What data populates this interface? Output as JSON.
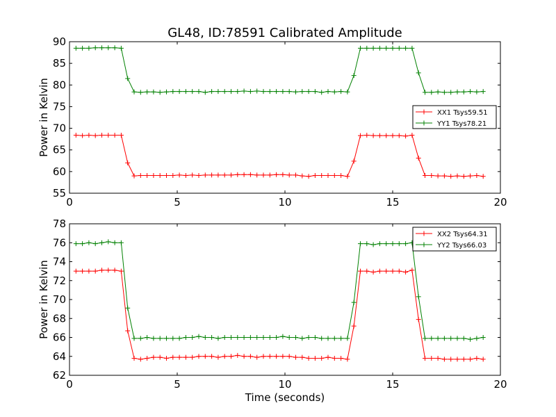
{
  "chart_data": {
    "title": "GL48, ID:78591 Calibrated Amplitude",
    "x": [
      0.3,
      0.6,
      0.9,
      1.2,
      1.5,
      1.8,
      2.1,
      2.4,
      2.7,
      3.0,
      3.3,
      3.6,
      3.9,
      4.2,
      4.5,
      4.8,
      5.1,
      5.4,
      5.7,
      6.0,
      6.3,
      6.6,
      6.9,
      7.2,
      7.5,
      7.8,
      8.1,
      8.4,
      8.7,
      9.0,
      9.3,
      9.6,
      9.9,
      10.2,
      10.5,
      10.8,
      11.1,
      11.4,
      11.7,
      12.0,
      12.3,
      12.6,
      12.9,
      13.2,
      13.5,
      13.8,
      14.1,
      14.4,
      14.7,
      15.0,
      15.3,
      15.6,
      15.9,
      16.2,
      16.5,
      16.8,
      17.1,
      17.4,
      17.7,
      18.0,
      18.3,
      18.6,
      18.9,
      19.2
    ],
    "panels": [
      {
        "type": "line",
        "xlabel": "",
        "ylabel": "Power in Kelvin",
        "xlim": [
          0,
          20
        ],
        "ylim": [
          55,
          90
        ],
        "xticks": [
          "0",
          "5",
          "10",
          "15",
          "20"
        ],
        "yticks": [
          "55",
          "60",
          "65",
          "70",
          "75",
          "80",
          "85",
          "90"
        ],
        "legend_position": "center-right",
        "series": [
          {
            "name": "XX1 Tsys59.51",
            "color": "#ff0000",
            "values": [
              68.4,
              68.3,
              68.4,
              68.3,
              68.4,
              68.4,
              68.4,
              68.4,
              62.0,
              59.0,
              59.1,
              59.1,
              59.1,
              59.1,
              59.1,
              59.1,
              59.2,
              59.1,
              59.2,
              59.1,
              59.2,
              59.2,
              59.2,
              59.2,
              59.2,
              59.3,
              59.3,
              59.3,
              59.2,
              59.2,
              59.2,
              59.3,
              59.3,
              59.2,
              59.2,
              59.0,
              58.9,
              59.1,
              59.1,
              59.1,
              59.1,
              59.1,
              58.9,
              62.4,
              68.3,
              68.4,
              68.3,
              68.3,
              68.3,
              68.3,
              68.3,
              68.2,
              68.4,
              63.1,
              59.1,
              59.1,
              59.0,
              59.0,
              58.9,
              59.0,
              58.9,
              59.0,
              59.1,
              58.9
            ]
          },
          {
            "name": "YY1 Tsys78.21",
            "color": "#008000",
            "values": [
              88.5,
              88.5,
              88.5,
              88.6,
              88.6,
              88.6,
              88.6,
              88.5,
              81.5,
              78.4,
              78.3,
              78.4,
              78.4,
              78.3,
              78.4,
              78.5,
              78.5,
              78.5,
              78.5,
              78.5,
              78.3,
              78.5,
              78.5,
              78.5,
              78.5,
              78.5,
              78.6,
              78.5,
              78.6,
              78.5,
              78.5,
              78.5,
              78.5,
              78.5,
              78.4,
              78.5,
              78.5,
              78.5,
              78.3,
              78.5,
              78.4,
              78.5,
              78.4,
              82.2,
              88.5,
              88.5,
              88.5,
              88.5,
              88.5,
              88.5,
              88.5,
              88.5,
              88.5,
              82.8,
              78.3,
              78.3,
              78.4,
              78.3,
              78.3,
              78.4,
              78.4,
              78.5,
              78.4,
              78.5
            ]
          }
        ]
      },
      {
        "type": "line",
        "xlabel": "Time (seconds)",
        "ylabel": "Power in Kelvin",
        "xlim": [
          0,
          20
        ],
        "ylim": [
          62,
          78
        ],
        "xticks": [
          "0",
          "5",
          "10",
          "15",
          "20"
        ],
        "yticks": [
          "62",
          "64",
          "66",
          "68",
          "70",
          "72",
          "74",
          "76",
          "78"
        ],
        "legend_position": "top-right",
        "series": [
          {
            "name": "XX2 Tsys64.31",
            "color": "#ff0000",
            "values": [
              73.0,
              73.0,
              73.0,
              73.0,
              73.1,
              73.1,
              73.1,
              73.0,
              66.7,
              63.8,
              63.7,
              63.8,
              63.9,
              63.9,
              63.8,
              63.9,
              63.9,
              63.9,
              63.9,
              64.0,
              64.0,
              64.0,
              63.9,
              64.0,
              64.0,
              64.1,
              64.0,
              64.0,
              63.9,
              64.0,
              64.0,
              64.0,
              64.0,
              64.0,
              63.9,
              63.9,
              63.8,
              63.8,
              63.8,
              63.9,
              63.8,
              63.8,
              63.7,
              67.2,
              73.0,
              73.0,
              72.9,
              73.0,
              73.0,
              73.0,
              73.0,
              72.9,
              73.1,
              67.9,
              63.8,
              63.8,
              63.8,
              63.7,
              63.7,
              63.7,
              63.7,
              63.7,
              63.8,
              63.7
            ]
          },
          {
            "name": "YY2 Tsys66.03",
            "color": "#008000",
            "values": [
              75.9,
              75.9,
              76.0,
              75.9,
              76.0,
              76.1,
              76.0,
              76.0,
              69.1,
              65.9,
              65.9,
              66.0,
              65.9,
              65.9,
              65.9,
              65.9,
              65.9,
              66.0,
              66.0,
              66.1,
              66.0,
              66.0,
              65.9,
              66.0,
              66.0,
              66.0,
              66.0,
              66.0,
              66.0,
              66.0,
              66.0,
              66.0,
              66.1,
              66.0,
              66.0,
              65.9,
              66.0,
              66.0,
              65.9,
              65.9,
              65.9,
              65.9,
              65.9,
              69.7,
              75.9,
              75.9,
              75.8,
              75.9,
              75.9,
              75.9,
              75.9,
              75.9,
              76.0,
              70.3,
              65.9,
              65.9,
              65.9,
              65.9,
              65.9,
              65.9,
              65.9,
              65.8,
              65.9,
              66.0
            ]
          }
        ]
      }
    ]
  }
}
